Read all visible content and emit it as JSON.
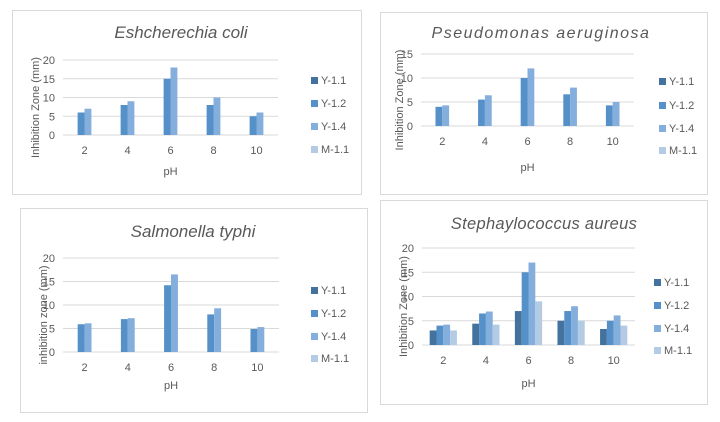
{
  "chart_data": [
    {
      "type": "bar",
      "title": "Eshcherechia coli",
      "xlabel": "pH",
      "ylabel": "Inhibition Zone (mm)",
      "categories": [
        "2",
        "4",
        "6",
        "8",
        "10"
      ],
      "ylim": [
        0,
        20
      ],
      "yticks": [
        0,
        5,
        10,
        15,
        20
      ],
      "grid": true,
      "legend": "right",
      "series": [
        {
          "name": "Y-1.1",
          "color": "#44729f",
          "values": [
            0,
            0,
            0,
            0,
            0
          ]
        },
        {
          "name": "Y-1.2",
          "color": "#5590c8",
          "values": [
            6,
            8,
            15,
            8,
            5
          ]
        },
        {
          "name": "Y-1.4",
          "color": "#84aedc",
          "values": [
            7,
            9,
            18,
            10,
            6
          ]
        },
        {
          "name": "M-1.1",
          "color": "#b4cbe6",
          "values": [
            0,
            0,
            0,
            0,
            0
          ]
        }
      ]
    },
    {
      "type": "bar",
      "title": "Pseudomonas aeruginosa",
      "xlabel": "pH",
      "ylabel": "Inhibition Zone (mm)",
      "categories": [
        "2",
        "4",
        "6",
        "8",
        "10"
      ],
      "ylim": [
        0,
        15
      ],
      "yticks": [
        0,
        5,
        10,
        15
      ],
      "grid": true,
      "legend": "right",
      "series": [
        {
          "name": "Y-1.1",
          "color": "#44729f",
          "values": [
            0,
            0,
            0,
            0,
            0
          ]
        },
        {
          "name": "Y-1.2",
          "color": "#5590c8",
          "values": [
            4,
            5.5,
            10,
            6.6,
            4.3
          ]
        },
        {
          "name": "Y-1.4",
          "color": "#84aedc",
          "values": [
            4.3,
            6.4,
            12,
            8,
            5
          ]
        },
        {
          "name": "M-1.1",
          "color": "#b4cbe6",
          "values": [
            0,
            0,
            0,
            0,
            0
          ]
        }
      ]
    },
    {
      "type": "bar",
      "title": "Salmonella typhi",
      "xlabel": "pH",
      "ylabel": "inhibition zone (mm)",
      "categories": [
        "2",
        "4",
        "6",
        "8",
        "10"
      ],
      "ylim": [
        0,
        20
      ],
      "yticks": [
        0,
        5,
        10,
        15,
        20
      ],
      "grid": true,
      "legend": "right",
      "series": [
        {
          "name": "Y-1.1",
          "color": "#44729f",
          "values": [
            0,
            0,
            0,
            0,
            0
          ]
        },
        {
          "name": "Y-1.2",
          "color": "#5590c8",
          "values": [
            5.9,
            7,
            14.2,
            8,
            4.9
          ]
        },
        {
          "name": "Y-1.4",
          "color": "#84aedc",
          "values": [
            6.1,
            7.2,
            16.5,
            9.3,
            5.3
          ]
        },
        {
          "name": "M-1.1",
          "color": "#b4cbe6",
          "values": [
            0,
            0,
            0,
            0,
            0
          ]
        }
      ]
    },
    {
      "type": "bar",
      "title": "Stephaylococcus  aureus",
      "xlabel": "pH",
      "ylabel": "Inhibition Zone (mm)",
      "categories": [
        "2",
        "4",
        "6",
        "8",
        "10"
      ],
      "ylim": [
        0,
        20
      ],
      "yticks": [
        0,
        5,
        10,
        15,
        20
      ],
      "grid": true,
      "legend": "right",
      "series": [
        {
          "name": "Y-1.1",
          "color": "#44729f",
          "values": [
            3,
            4.4,
            7,
            5,
            3.3
          ]
        },
        {
          "name": "Y-1.2",
          "color": "#5590c8",
          "values": [
            4,
            6.5,
            15,
            7,
            5
          ]
        },
        {
          "name": "Y-1.4",
          "color": "#84aedc",
          "values": [
            4.2,
            6.9,
            17,
            8,
            6.1
          ]
        },
        {
          "name": "M-1.1",
          "color": "#b4cbe6",
          "values": [
            3,
            4.2,
            9,
            5,
            4
          ]
        }
      ]
    }
  ]
}
